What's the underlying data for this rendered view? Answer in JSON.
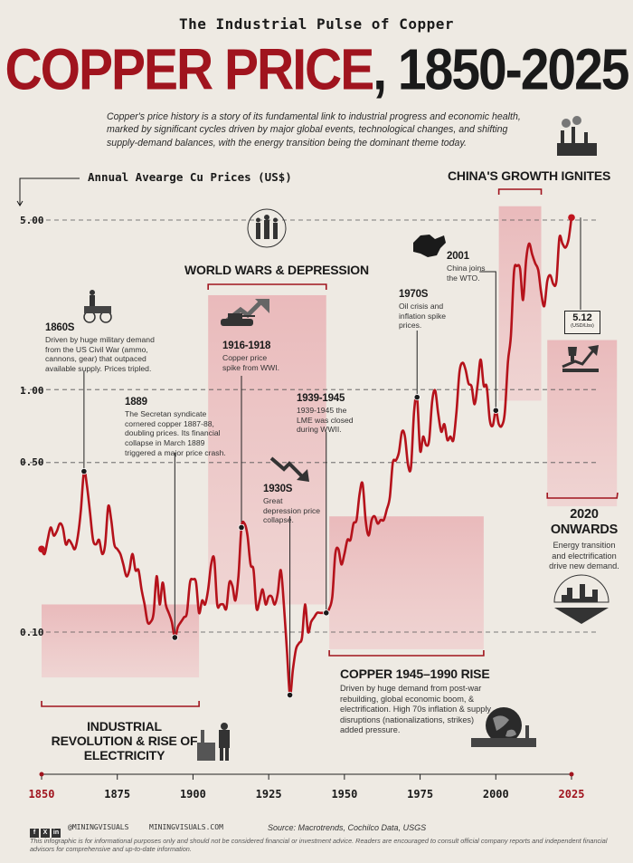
{
  "header": {
    "kicker": "The Industrial Pulse of Copper",
    "title_red": "COPPER PRICE",
    "title_black": ", 1850-2025",
    "intro": "Copper's price history is a story of its fundamental link to industrial progress and economic health, marked by significant cycles driven by major global events, technological changes, and shifting supply-demand balances, with the energy transition being the dominant theme today."
  },
  "colors": {
    "accent": "#a0141e",
    "line": "#b5121b",
    "band": "#e3a5a8",
    "background": "#eeeae3"
  },
  "chart_data": {
    "type": "line",
    "ylabel": "Annual Avearge Cu Prices (US$)",
    "yscale": "log",
    "ylim": [
      0.065,
      6.5
    ],
    "xlim": [
      1850,
      2025
    ],
    "yticks": [
      {
        "value": 5,
        "label": "5.00"
      },
      {
        "value": 1,
        "label": "1.00"
      },
      {
        "value": 0.5,
        "label": "0.50"
      },
      {
        "value": 0.1,
        "label": "0.10"
      }
    ],
    "xticks": [
      1850,
      1875,
      1900,
      1925,
      1950,
      1975,
      2000,
      2025
    ],
    "grid": "dashed horizontal",
    "series": [
      {
        "values": [
          [
            1850,
            0.22
          ],
          [
            1851,
            0.21
          ],
          [
            1852,
            0.24
          ],
          [
            1853,
            0.27
          ],
          [
            1854,
            0.25
          ],
          [
            1855,
            0.26
          ],
          [
            1856,
            0.28
          ],
          [
            1857,
            0.27
          ],
          [
            1858,
            0.23
          ],
          [
            1859,
            0.24
          ],
          [
            1860,
            0.23
          ],
          [
            1861,
            0.22
          ],
          [
            1862,
            0.25
          ],
          [
            1863,
            0.32
          ],
          [
            1864,
            0.46
          ],
          [
            1865,
            0.4
          ],
          [
            1866,
            0.31
          ],
          [
            1867,
            0.24
          ],
          [
            1868,
            0.23
          ],
          [
            1869,
            0.24
          ],
          [
            1870,
            0.21
          ],
          [
            1871,
            0.23
          ],
          [
            1872,
            0.33
          ],
          [
            1873,
            0.29
          ],
          [
            1874,
            0.23
          ],
          [
            1875,
            0.22
          ],
          [
            1876,
            0.21
          ],
          [
            1877,
            0.19
          ],
          [
            1878,
            0.17
          ],
          [
            1879,
            0.18
          ],
          [
            1880,
            0.21
          ],
          [
            1881,
            0.18
          ],
          [
            1882,
            0.18
          ],
          [
            1883,
            0.15
          ],
          [
            1884,
            0.13
          ],
          [
            1885,
            0.11
          ],
          [
            1886,
            0.11
          ],
          [
            1887,
            0.12
          ],
          [
            1888,
            0.17
          ],
          [
            1889,
            0.13
          ],
          [
            1890,
            0.16
          ],
          [
            1891,
            0.13
          ],
          [
            1892,
            0.12
          ],
          [
            1893,
            0.11
          ],
          [
            1894,
            0.095
          ],
          [
            1895,
            0.105
          ],
          [
            1896,
            0.11
          ],
          [
            1897,
            0.115
          ],
          [
            1898,
            0.12
          ],
          [
            1899,
            0.16
          ],
          [
            1900,
            0.165
          ],
          [
            1901,
            0.16
          ],
          [
            1902,
            0.12
          ],
          [
            1903,
            0.135
          ],
          [
            1904,
            0.13
          ],
          [
            1905,
            0.15
          ],
          [
            1906,
            0.19
          ],
          [
            1907,
            0.2
          ],
          [
            1908,
            0.13
          ],
          [
            1909,
            0.13
          ],
          [
            1910,
            0.13
          ],
          [
            1911,
            0.125
          ],
          [
            1912,
            0.16
          ],
          [
            1913,
            0.155
          ],
          [
            1914,
            0.135
          ],
          [
            1915,
            0.17
          ],
          [
            1916,
            0.27
          ],
          [
            1917,
            0.28
          ],
          [
            1918,
            0.25
          ],
          [
            1919,
            0.19
          ],
          [
            1920,
            0.18
          ],
          [
            1921,
            0.125
          ],
          [
            1922,
            0.135
          ],
          [
            1923,
            0.15
          ],
          [
            1924,
            0.13
          ],
          [
            1925,
            0.14
          ],
          [
            1926,
            0.14
          ],
          [
            1927,
            0.13
          ],
          [
            1928,
            0.145
          ],
          [
            1929,
            0.18
          ],
          [
            1930,
            0.13
          ],
          [
            1931,
            0.085
          ],
          [
            1932,
            0.055
          ],
          [
            1933,
            0.07
          ],
          [
            1934,
            0.085
          ],
          [
            1935,
            0.09
          ],
          [
            1936,
            0.095
          ],
          [
            1937,
            0.13
          ],
          [
            1938,
            0.1
          ],
          [
            1939,
            0.11
          ],
          [
            1940,
            0.115
          ],
          [
            1941,
            0.12
          ],
          [
            1942,
            0.12
          ],
          [
            1943,
            0.12
          ],
          [
            1944,
            0.12
          ],
          [
            1945,
            0.125
          ],
          [
            1946,
            0.14
          ],
          [
            1947,
            0.21
          ],
          [
            1948,
            0.22
          ],
          [
            1949,
            0.19
          ],
          [
            1950,
            0.21
          ],
          [
            1951,
            0.24
          ],
          [
            1952,
            0.24
          ],
          [
            1953,
            0.28
          ],
          [
            1954,
            0.29
          ],
          [
            1955,
            0.37
          ],
          [
            1956,
            0.41
          ],
          [
            1957,
            0.29
          ],
          [
            1958,
            0.25
          ],
          [
            1959,
            0.29
          ],
          [
            1960,
            0.3
          ],
          [
            1961,
            0.28
          ],
          [
            1962,
            0.29
          ],
          [
            1963,
            0.29
          ],
          [
            1964,
            0.32
          ],
          [
            1965,
            0.36
          ],
          [
            1966,
            0.5
          ],
          [
            1967,
            0.51
          ],
          [
            1968,
            0.55
          ],
          [
            1969,
            0.67
          ],
          [
            1970,
            0.64
          ],
          [
            1971,
            0.49
          ],
          [
            1972,
            0.48
          ],
          [
            1973,
            0.81
          ],
          [
            1974,
            0.93
          ],
          [
            1975,
            0.56
          ],
          [
            1976,
            0.64
          ],
          [
            1977,
            0.59
          ],
          [
            1978,
            0.62
          ],
          [
            1979,
            0.9
          ],
          [
            1980,
            0.99
          ],
          [
            1981,
            0.79
          ],
          [
            1982,
            0.67
          ],
          [
            1983,
            0.72
          ],
          [
            1984,
            0.62
          ],
          [
            1985,
            0.64
          ],
          [
            1986,
            0.62
          ],
          [
            1987,
            0.81
          ],
          [
            1988,
            1.18
          ],
          [
            1989,
            1.29
          ],
          [
            1990,
            1.21
          ],
          [
            1991,
            1.06
          ],
          [
            1992,
            1.03
          ],
          [
            1993,
            0.87
          ],
          [
            1994,
            1.05
          ],
          [
            1995,
            1.33
          ],
          [
            1996,
            1.04
          ],
          [
            1997,
            1.03
          ],
          [
            1998,
            0.75
          ],
          [
            1999,
            0.71
          ],
          [
            2000,
            0.82
          ],
          [
            2001,
            0.72
          ],
          [
            2002,
            0.71
          ],
          [
            2003,
            0.81
          ],
          [
            2004,
            1.3
          ],
          [
            2005,
            1.67
          ],
          [
            2006,
            3.05
          ],
          [
            2007,
            3.23
          ],
          [
            2008,
            3.15
          ],
          [
            2009,
            2.34
          ],
          [
            2010,
            3.42
          ],
          [
            2011,
            4.0
          ],
          [
            2012,
            3.61
          ],
          [
            2013,
            3.32
          ],
          [
            2014,
            3.11
          ],
          [
            2015,
            2.5
          ],
          [
            2016,
            2.21
          ],
          [
            2017,
            2.8
          ],
          [
            2018,
            2.96
          ],
          [
            2019,
            2.72
          ],
          [
            2020,
            2.8
          ],
          [
            2021,
            4.23
          ],
          [
            2022,
            4.0
          ],
          [
            2023,
            3.85
          ],
          [
            2024,
            4.15
          ],
          [
            2025,
            5.12
          ]
        ]
      }
    ],
    "markers": [
      1850,
      1864,
      1894,
      1916,
      1932,
      1944,
      1974,
      2000,
      2025
    ],
    "bands": [
      {
        "from": 1850,
        "to": 1902,
        "ymin": 0.065,
        "ymax": 0.13
      },
      {
        "from": 1905,
        "to": 1944,
        "ymin": 0.13,
        "ymax": 2.45
      },
      {
        "from": 1945,
        "to": 1996,
        "ymin": 0.085,
        "ymax": 0.3
      },
      {
        "from": 2001,
        "to": 2015,
        "ymin": 0.9,
        "ymax": 5.7
      },
      {
        "from": 2017,
        "to": 2040,
        "ymin": 0.33,
        "ymax": 1.6
      }
    ]
  },
  "annotations": {
    "a1860": {
      "heading": "1860S",
      "body": "Driven by huge military demand from the US Civil War (ammo, cannons, gear) that outpaced available supply. Prices tripled."
    },
    "a1889": {
      "heading": "1889",
      "body": "The Secretan syndicate cornered copper 1887-88, doubling prices. Its financial collapse in March 1889 triggered a major price crash."
    },
    "a1916": {
      "heading": "1916-1918",
      "body": "Copper price spike from WWI."
    },
    "a1930": {
      "heading": "1930S",
      "body": "Great depression price collapse."
    },
    "a1939": {
      "heading": "1939-1945",
      "body": "1939-1945 the LME was closed during WWII."
    },
    "a1970": {
      "heading": "1970S",
      "body": "Oil crisis and inflation spike prices."
    },
    "a2001": {
      "heading": "2001",
      "body": "China joins the WTO."
    }
  },
  "sections": {
    "industrial": "INDUSTRIAL REVOLUTION & RISE OF ELECTRICITY",
    "wars": "WORLD WARS & DEPRESSION",
    "rise_title": "COPPER 1945–1990 RISE",
    "rise_body": "Driven by huge demand from post-war rebuilding, global economic boom, & electrification. High 70s inflation & supply disruptions (nationalizations, strikes) added pressure.",
    "china": "CHINA'S GROWTH IGNITES",
    "onwards_title": "2020 ONWARDS",
    "onwards_body": "Energy transition and electrification drive new demand."
  },
  "badge": {
    "value": "5.12",
    "unit": "(USD/Lbs)"
  },
  "footer": {
    "social": [
      "f",
      "X",
      "in"
    ],
    "handle": "@MININGVISUALS",
    "site": "MININGVISUALS.COM",
    "source": "Source: Macrotrends, Cochilco Data, USGS",
    "disclaimer": "This infographic is for informational purposes only and should not be considered financial or investment advice. Readers are encouraged to consult official company reports and independent financial advisors for comprehensive and up-to-date information."
  }
}
